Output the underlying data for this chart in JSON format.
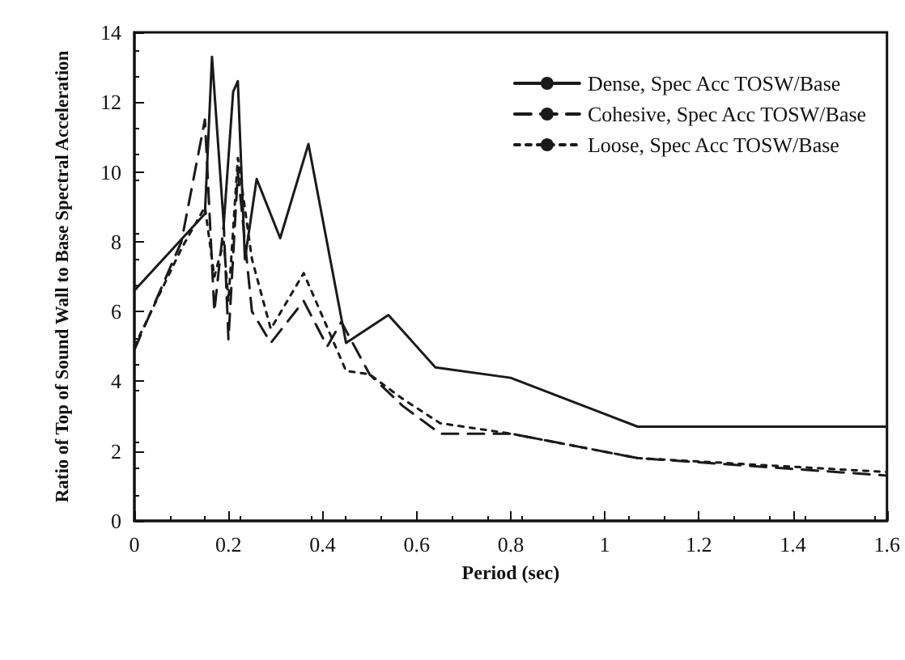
{
  "chart_data": {
    "type": "line",
    "xlabel": "Period (sec)",
    "ylabel": "Ratio of Top of Sound Wall to Base Spectral Acceleration",
    "xlim": [
      0,
      1.6
    ],
    "xticks": [
      0,
      0.2,
      0.4,
      0.6,
      0.8,
      1,
      1.2,
      1.4,
      1.6
    ],
    "ylim": [
      0,
      14
    ],
    "yticks": [
      0,
      2,
      4,
      6,
      8,
      10,
      12,
      14
    ],
    "grid": false,
    "legend": "top right",
    "marker": "none",
    "series": [
      {
        "name": "Dense, Spec Acc TOSW/Base",
        "color": "#1a1a1a",
        "line_style": "solid",
        "x": [
          0,
          0.15,
          0.165,
          0.19,
          0.21,
          0.22,
          0.235,
          0.26,
          0.31,
          0.37,
          0.45,
          0.54,
          0.64,
          0.8,
          1.07,
          1.6
        ],
        "values": [
          6.6,
          8.8,
          13.3,
          8.5,
          12.3,
          12.6,
          7.5,
          9.8,
          8.1,
          10.8,
          5.1,
          5.9,
          4.4,
          4.1,
          2.7,
          2.7
        ]
      },
      {
        "name": "Cohesive, Spec Acc TOSW/Base",
        "color": "#1a1a1a",
        "line_style": "dashed",
        "x": [
          0,
          0.1,
          0.15,
          0.17,
          0.19,
          0.2,
          0.22,
          0.25,
          0.29,
          0.36,
          0.41,
          0.44,
          0.5,
          0.57,
          0.65,
          0.8,
          1.07,
          1.6
        ],
        "values": [
          4.9,
          8,
          11.5,
          6,
          8.5,
          5.2,
          10,
          6,
          5.1,
          6.3,
          5,
          5.7,
          4.2,
          3.3,
          2.5,
          2.5,
          1.8,
          1.3
        ]
      },
      {
        "name": "Loose, Spec Acc TOSW/Base",
        "color": "#1a1a1a",
        "line_style": "dotted",
        "x": [
          0,
          0.1,
          0.15,
          0.17,
          0.19,
          0.2,
          0.22,
          0.25,
          0.29,
          0.36,
          0.45,
          0.5,
          0.57,
          0.65,
          0.8,
          1.07,
          1.6
        ],
        "values": [
          5,
          7.8,
          9,
          7,
          8,
          6.3,
          10.4,
          7.5,
          5.5,
          7.1,
          4.3,
          4.2,
          3.5,
          2.8,
          2.5,
          1.8,
          1.4
        ]
      }
    ]
  }
}
